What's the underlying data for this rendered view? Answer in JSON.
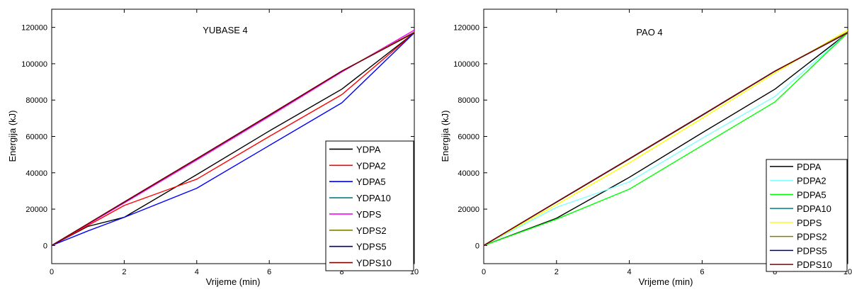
{
  "chart_data": [
    {
      "type": "line",
      "title": "YUBASE 4",
      "xlabel": "Vrijeme (min)",
      "ylabel": "Energija (kJ)",
      "xlim": [
        0,
        10
      ],
      "ylim": [
        -10000,
        130000
      ],
      "xticks": [
        0,
        2,
        4,
        6,
        8,
        10
      ],
      "yticks": [
        0,
        20000,
        40000,
        60000,
        80000,
        100000,
        120000
      ],
      "grid": false,
      "legend": "bottom-right",
      "x": [
        0,
        1,
        2,
        4,
        6,
        8,
        10
      ],
      "series": [
        {
          "name": "YDPA",
          "color": "#000000",
          "values": [
            0,
            10500,
            15500,
            39000,
            63000,
            86000,
            117000
          ]
        },
        {
          "name": "YDPA2",
          "color": "#ff0000",
          "values": [
            0,
            11000,
            22000,
            36500,
            60000,
            83000,
            117000
          ]
        },
        {
          "name": "YDPA5",
          "color": "#0000ff",
          "values": [
            0,
            8000,
            15500,
            31500,
            55000,
            78500,
            117000
          ]
        },
        {
          "name": "YDPA10",
          "color": "#008080",
          "values": [
            0,
            11800,
            23700,
            47500,
            71500,
            95800,
            117500
          ]
        },
        {
          "name": "YDPS",
          "color": "#ff00ff",
          "values": [
            0,
            11700,
            23400,
            47000,
            71000,
            95500,
            118500
          ]
        },
        {
          "name": "YDPS2",
          "color": "#808000",
          "values": [
            0,
            11900,
            23800,
            47600,
            71600,
            95900,
            117500
          ]
        },
        {
          "name": "YDPS5",
          "color": "#000080",
          "values": [
            0,
            11900,
            23900,
            47700,
            71700,
            95900,
            117000
          ]
        },
        {
          "name": "YDPS10",
          "color": "#800000",
          "values": [
            0,
            12000,
            24000,
            47800,
            71800,
            96000,
            117000
          ]
        }
      ]
    },
    {
      "type": "line",
      "title": "PAO 4",
      "xlabel": "Vrijeme (min)",
      "ylabel": "Energija (kJ)",
      "xlim": [
        0,
        10
      ],
      "ylim": [
        -10000,
        130000
      ],
      "xticks": [
        0,
        2,
        4,
        6,
        8,
        10
      ],
      "yticks": [
        0,
        20000,
        40000,
        60000,
        80000,
        100000,
        120000
      ],
      "grid": false,
      "legend": "bottom-right",
      "x": [
        0,
        2,
        4,
        6,
        8,
        10
      ],
      "series": [
        {
          "name": "PDPA",
          "color": "#000000",
          "values": [
            0,
            15000,
            37500,
            62000,
            86000,
            117000
          ]
        },
        {
          "name": "PDPA2",
          "color": "#80ffff",
          "values": [
            0,
            21000,
            35000,
            59000,
            82000,
            117000
          ]
        },
        {
          "name": "PDPA5",
          "color": "#00ff00",
          "values": [
            0,
            14500,
            31000,
            55000,
            79000,
            117000
          ]
        },
        {
          "name": "PDPA10",
          "color": "#008080",
          "values": [
            0,
            23800,
            47500,
            71500,
            95800,
            117500
          ]
        },
        {
          "name": "PDPS",
          "color": "#ffff00",
          "values": [
            0,
            22500,
            45500,
            70000,
            95000,
            118500
          ]
        },
        {
          "name": "PDPS2",
          "color": "#808000",
          "values": [
            0,
            23800,
            47600,
            71600,
            95900,
            117500
          ]
        },
        {
          "name": "PDPS5",
          "color": "#000080",
          "values": [
            0,
            23900,
            47700,
            71700,
            95900,
            117000
          ]
        },
        {
          "name": "PDPS10",
          "color": "#800000",
          "values": [
            0,
            24000,
            47800,
            71800,
            96000,
            117000
          ]
        }
      ]
    }
  ]
}
